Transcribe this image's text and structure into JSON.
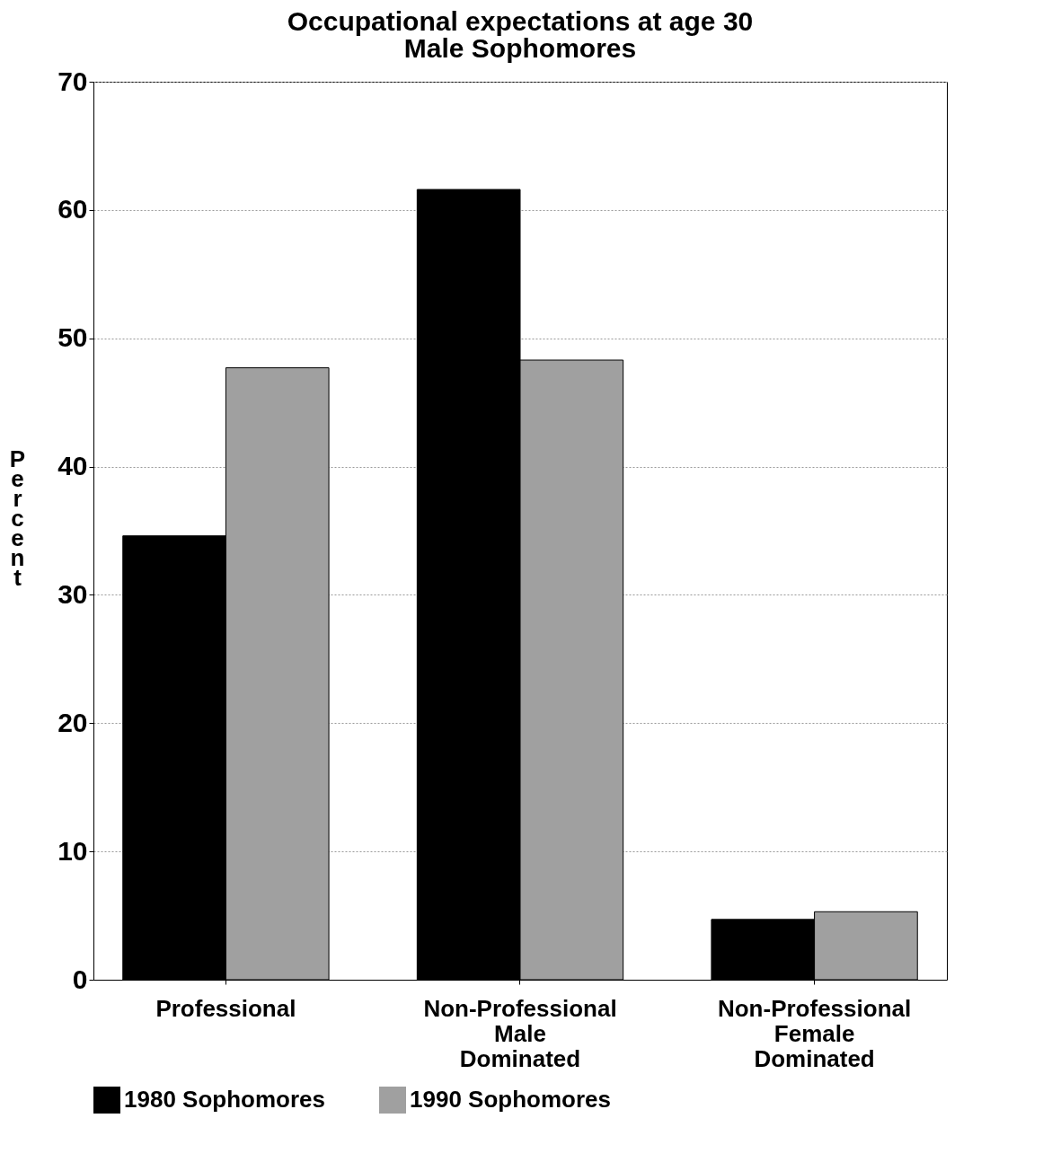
{
  "chart_data": {
    "type": "bar",
    "title": "Occupational expectations at age 30",
    "subtitle": "Male Sophomores",
    "ylabel": "Percent",
    "categories": [
      "Professional",
      "Non-Professional\nMale\nDominated",
      "Non-Professional\nFemale\nDominated"
    ],
    "series": [
      {
        "name": "1980 Sophomores",
        "color": "#000000",
        "values": [
          34.6,
          61.6,
          4.7
        ]
      },
      {
        "name": "1990 Sophomores",
        "color": "#a0a0a0",
        "values": [
          47.7,
          48.3,
          5.3
        ]
      }
    ],
    "ylim": [
      0,
      70
    ],
    "yticks": [
      0,
      10,
      20,
      30,
      40,
      50,
      60,
      70
    ],
    "grid": "y",
    "legend": "bottom"
  }
}
